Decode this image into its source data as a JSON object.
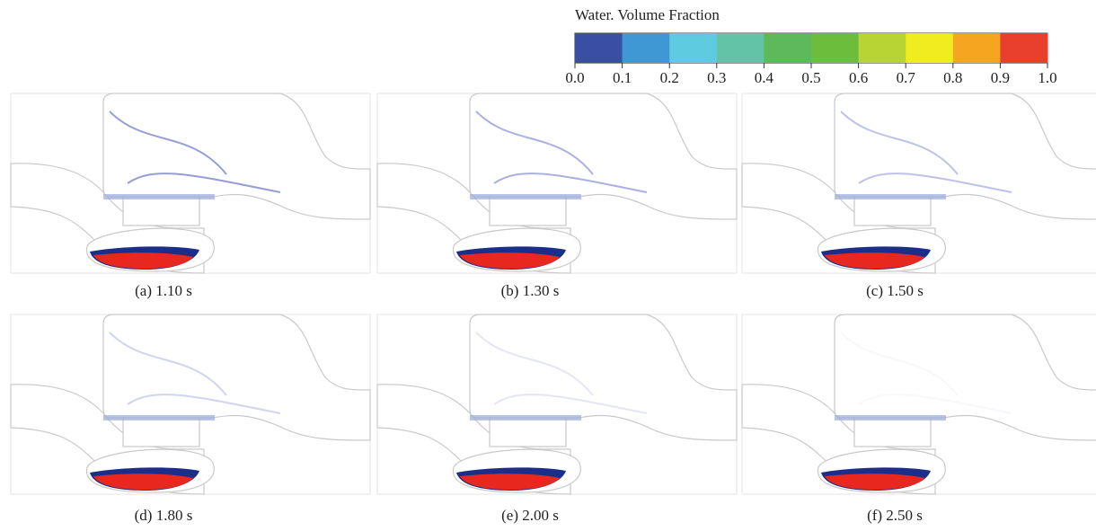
{
  "colorbar": {
    "title": "Water. Volume Fraction",
    "colors": [
      "#3a4fa3",
      "#3f97d4",
      "#5ecbe0",
      "#63c3a6",
      "#5db95a",
      "#6bbd3b",
      "#b7d334",
      "#f1ec1f",
      "#f6a520",
      "#e8402d"
    ],
    "ticks": [
      {
        "value": 0,
        "label": "0.0"
      },
      {
        "value": 0.1,
        "label": "0.1"
      },
      {
        "value": 0.2,
        "label": "0.2"
      },
      {
        "value": 0.3,
        "label": "0.3"
      },
      {
        "value": 0.4,
        "label": "0.4"
      },
      {
        "value": 0.5,
        "label": "0.5"
      },
      {
        "value": 0.6,
        "label": "0.6"
      },
      {
        "value": 0.7,
        "label": "0.7"
      },
      {
        "value": 0.8,
        "label": "0.8"
      },
      {
        "value": 0.9,
        "label": "0.9"
      },
      {
        "value": 1,
        "label": "1.0"
      }
    ]
  },
  "panels": [
    {
      "caption": "(a) 1.10 s"
    },
    {
      "caption": "(b) 1.30 s"
    },
    {
      "caption": "(c) 1.50 s"
    },
    {
      "caption": "(d) 1.80 s"
    },
    {
      "caption": "(e) 2.00 s"
    },
    {
      "caption": "(f) 2.50 s"
    }
  ]
}
